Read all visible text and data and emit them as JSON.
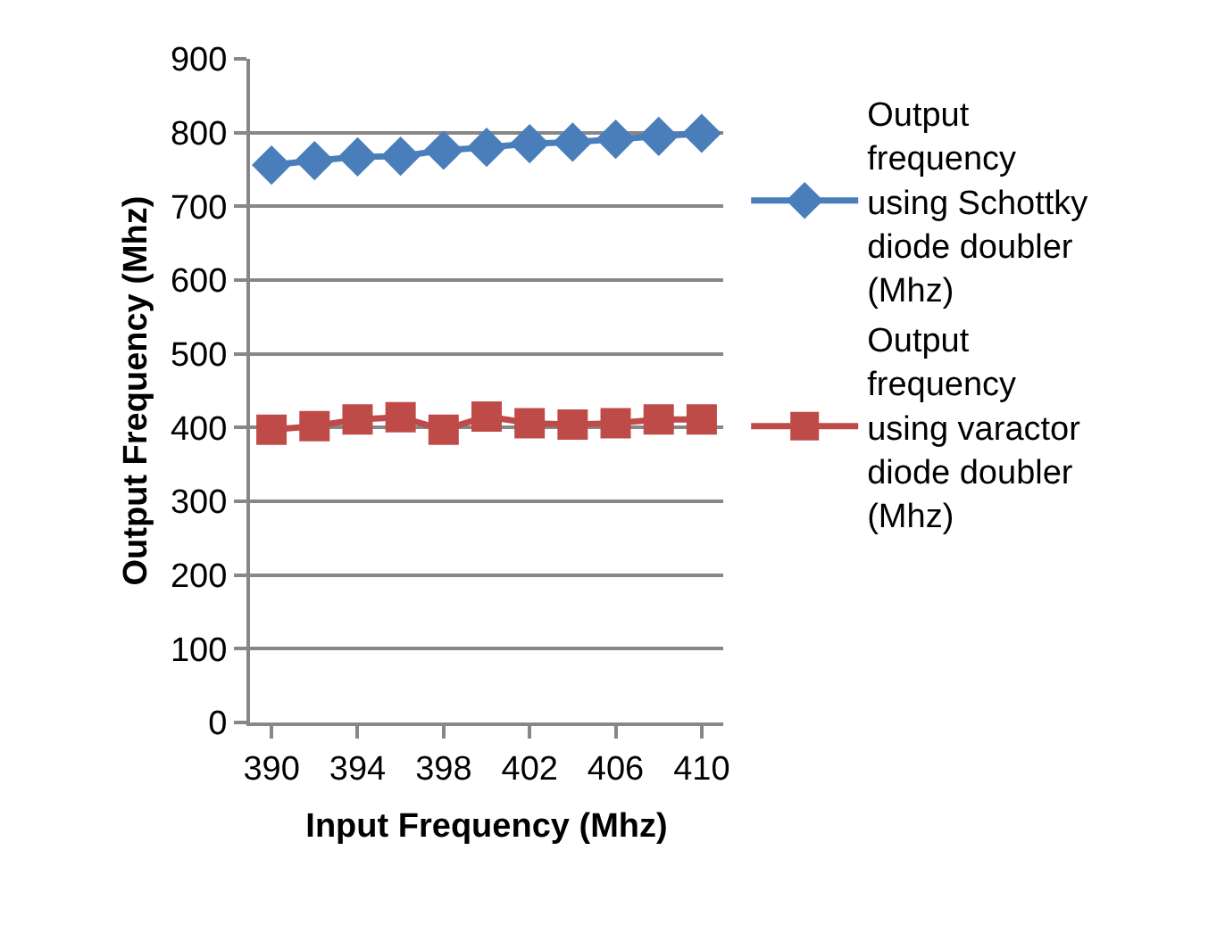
{
  "chart_data": {
    "type": "line",
    "xlabel": "Input Frequency (Mhz)",
    "ylabel": "Output Frequency (Mhz)",
    "x": [
      390,
      392,
      394,
      396,
      398,
      400,
      402,
      404,
      406,
      408,
      410
    ],
    "xlim": [
      389,
      411
    ],
    "xticks": [
      390,
      394,
      398,
      402,
      406,
      410
    ],
    "ylim": [
      0,
      900
    ],
    "yticks": [
      0,
      100,
      200,
      300,
      400,
      500,
      600,
      700,
      800,
      900
    ],
    "grid": "y",
    "legend": "right",
    "series": [
      {
        "name": "Output frequency using Schottky diode doubler (Mhz)",
        "color": "#4a7ebb",
        "marker": "diamond",
        "values": [
          756,
          762,
          767,
          768,
          776,
          780,
          785,
          787,
          791,
          795,
          799
        ]
      },
      {
        "name": "Output frequency using varactor diode doubler (Mhz)",
        "color": "#be4b48",
        "marker": "square",
        "values": [
          397,
          402,
          411,
          414,
          397,
          415,
          406,
          404,
          406,
          411,
          411
        ]
      }
    ]
  }
}
